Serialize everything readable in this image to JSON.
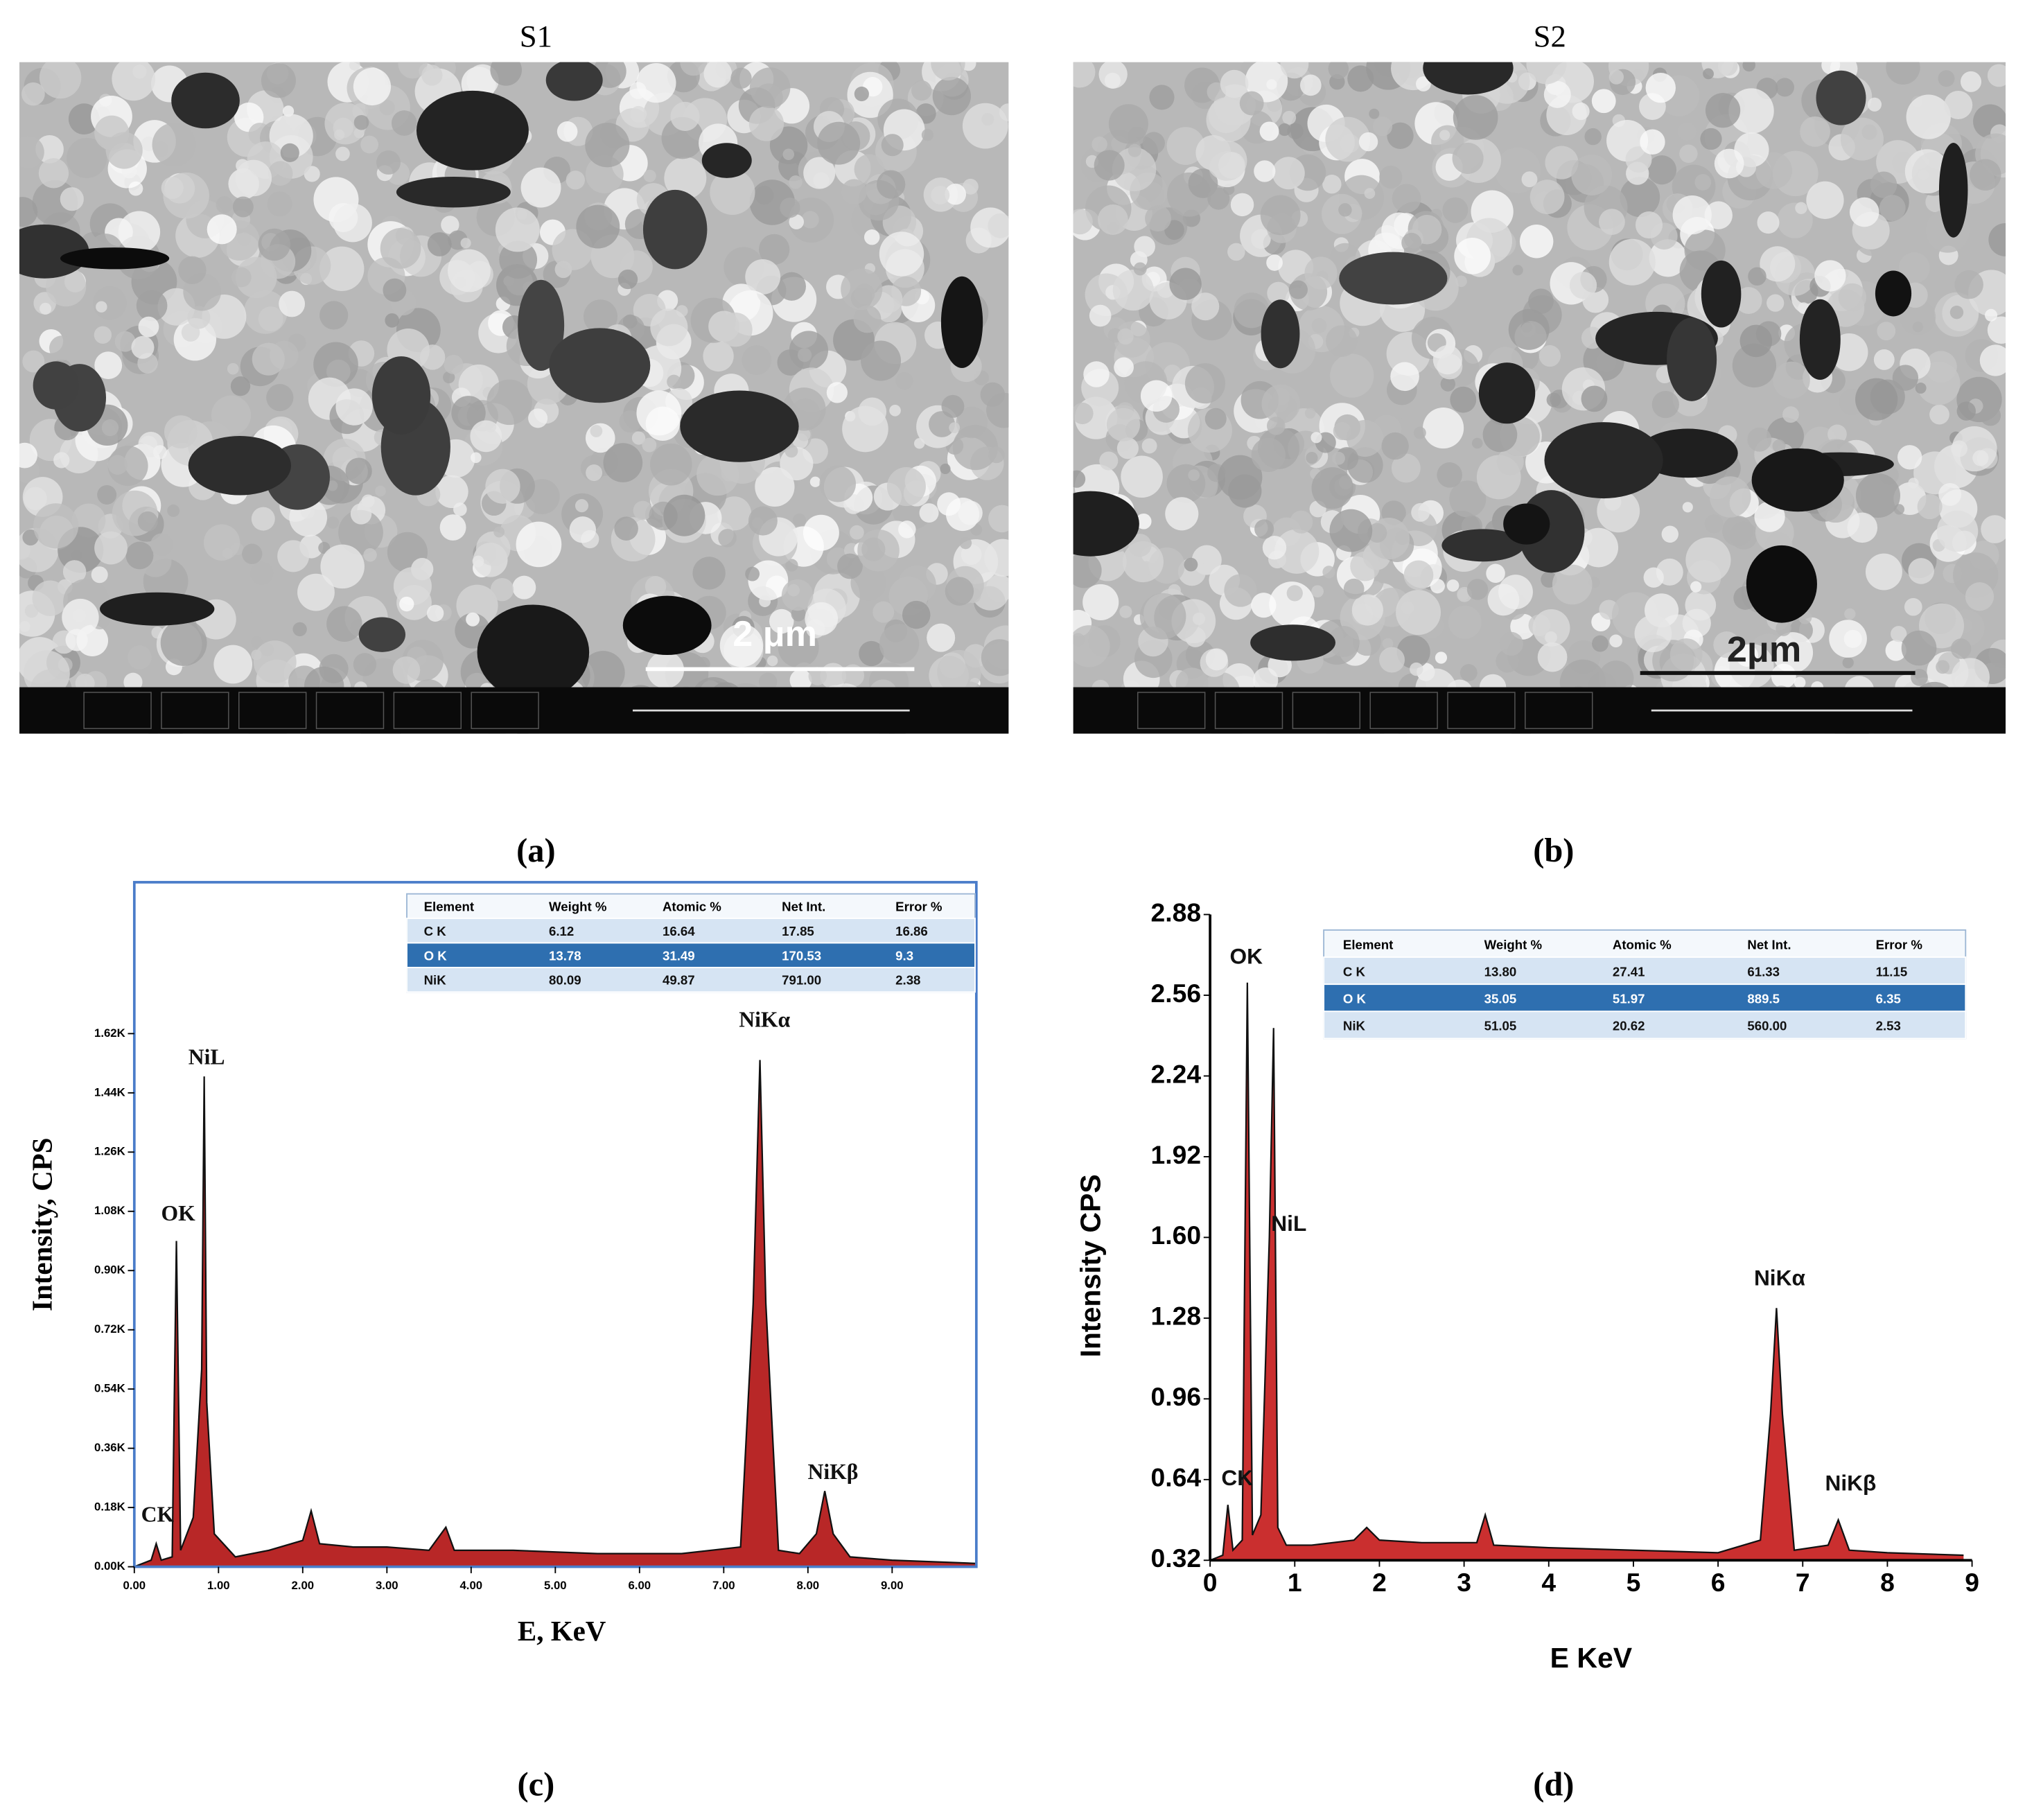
{
  "panels": [
    {
      "title": "S1",
      "scale_bar": "2 μm",
      "caption": "(a)"
    },
    {
      "title": "S2",
      "scale_bar": "2μm",
      "caption": "(b)"
    }
  ],
  "chart_data": [
    {
      "type": "area",
      "caption": "(c)",
      "x_label": "E, KeV",
      "y_label": "Intensity, CPS",
      "xlim": [
        0,
        10
      ],
      "ylim": [
        0,
        2.08
      ],
      "xticks": [
        {
          "value": 0,
          "label": "0.00"
        },
        {
          "value": 1,
          "label": "1.00"
        },
        {
          "value": 2,
          "label": "2.00"
        },
        {
          "value": 3,
          "label": "3.00"
        },
        {
          "value": 4,
          "label": "4.00"
        },
        {
          "value": 5,
          "label": "5.00"
        },
        {
          "value": 6,
          "label": "6.00"
        },
        {
          "value": 7,
          "label": "7.00"
        },
        {
          "value": 8,
          "label": "8.00"
        },
        {
          "value": 9,
          "label": "9.00"
        }
      ],
      "yticks": [
        {
          "value": 0,
          "label": "0.00K"
        },
        {
          "value": 0.18,
          "label": "0.18K"
        },
        {
          "value": 0.36,
          "label": "0.36K"
        },
        {
          "value": 0.54,
          "label": "0.54K"
        },
        {
          "value": 0.72,
          "label": "0.72K"
        },
        {
          "value": 0.9,
          "label": "0.90K"
        },
        {
          "value": 1.08,
          "label": "1.08K"
        },
        {
          "value": 1.26,
          "label": "1.26K"
        },
        {
          "value": 1.44,
          "label": "1.44K"
        },
        {
          "value": 1.62,
          "label": "1.62K"
        }
      ],
      "x": [
        0,
        0.2,
        0.26,
        0.32,
        0.45,
        0.5,
        0.55,
        0.7,
        0.8,
        0.83,
        0.86,
        0.95,
        1.2,
        1.6,
        2.0,
        2.1,
        2.2,
        2.6,
        3.0,
        3.5,
        3.7,
        3.8,
        4.5,
        5.5,
        6.5,
        7.2,
        7.35,
        7.43,
        7.5,
        7.65,
        7.9,
        8.1,
        8.2,
        8.3,
        8.5,
        9.0,
        10.0
      ],
      "series": [
        {
          "color": "#b01010",
          "values": [
            0.0,
            0.02,
            0.07,
            0.02,
            0.03,
            0.99,
            0.05,
            0.15,
            0.6,
            1.49,
            0.5,
            0.1,
            0.03,
            0.05,
            0.08,
            0.17,
            0.07,
            0.06,
            0.06,
            0.05,
            0.12,
            0.05,
            0.05,
            0.04,
            0.04,
            0.06,
            0.8,
            1.54,
            0.8,
            0.05,
            0.04,
            0.1,
            0.23,
            0.1,
            0.03,
            0.02,
            0.01
          ]
        }
      ],
      "annotations": [
        "CK",
        "OK",
        "NiL",
        "NiKα",
        "NiKβ"
      ],
      "table": {
        "header": [
          "Element",
          "Weight %",
          "Atomic %",
          "Net Int.",
          "Error %"
        ],
        "rows": [
          [
            "C K",
            "6.12",
            "16.64",
            "17.85",
            "16.86"
          ],
          [
            "O K",
            "13.78",
            "31.49",
            "170.53",
            "9.3"
          ],
          [
            "NiK",
            "80.09",
            "49.87",
            "791.00",
            "2.38"
          ]
        ]
      }
    },
    {
      "type": "area",
      "caption": "(d)",
      "x_label": "E KeV",
      "y_label": "Intensity CPS",
      "xlim": [
        0,
        9
      ],
      "ylim": [
        0.32,
        2.88
      ],
      "xticks": [
        0,
        1,
        2,
        3,
        4,
        5,
        6,
        7,
        8,
        9
      ],
      "yticks": [
        0.32,
        0.64,
        0.96,
        1.28,
        {
          "value": 1.6,
          "label": "1.60"
        },
        1.92,
        2.24,
        2.56,
        2.88
      ],
      "x": [
        0,
        0.15,
        0.21,
        0.27,
        0.38,
        0.44,
        0.5,
        0.6,
        0.7,
        0.75,
        0.8,
        0.9,
        1.2,
        1.7,
        1.85,
        2.0,
        2.5,
        3.15,
        3.25,
        3.35,
        4.0,
        5.0,
        6.0,
        6.5,
        6.62,
        6.69,
        6.76,
        6.9,
        7.3,
        7.42,
        7.55,
        8.0,
        8.9
      ],
      "series": [
        {
          "color": "#c41818",
          "values": [
            0.32,
            0.34,
            0.54,
            0.36,
            0.4,
            2.61,
            0.42,
            0.5,
            1.6,
            2.43,
            0.45,
            0.38,
            0.38,
            0.4,
            0.45,
            0.4,
            0.39,
            0.39,
            0.5,
            0.38,
            0.37,
            0.36,
            0.35,
            0.4,
            0.9,
            1.32,
            0.9,
            0.36,
            0.38,
            0.48,
            0.36,
            0.35,
            0.34
          ]
        }
      ],
      "annotations": [
        "OK",
        "NiL",
        "CK",
        "NiKα",
        "NiKβ"
      ],
      "table": {
        "header": [
          "Element",
          "Weight %",
          "Atomic %",
          "Net Int.",
          "Error %"
        ],
        "rows": [
          [
            "C K",
            "13.80",
            "27.41",
            "61.33",
            "11.15"
          ],
          [
            "O K",
            "35.05",
            "51.97",
            "889.5",
            "6.35"
          ],
          [
            "NiK",
            "51.05",
            "20.62",
            "560.00",
            "2.53"
          ]
        ]
      }
    }
  ]
}
